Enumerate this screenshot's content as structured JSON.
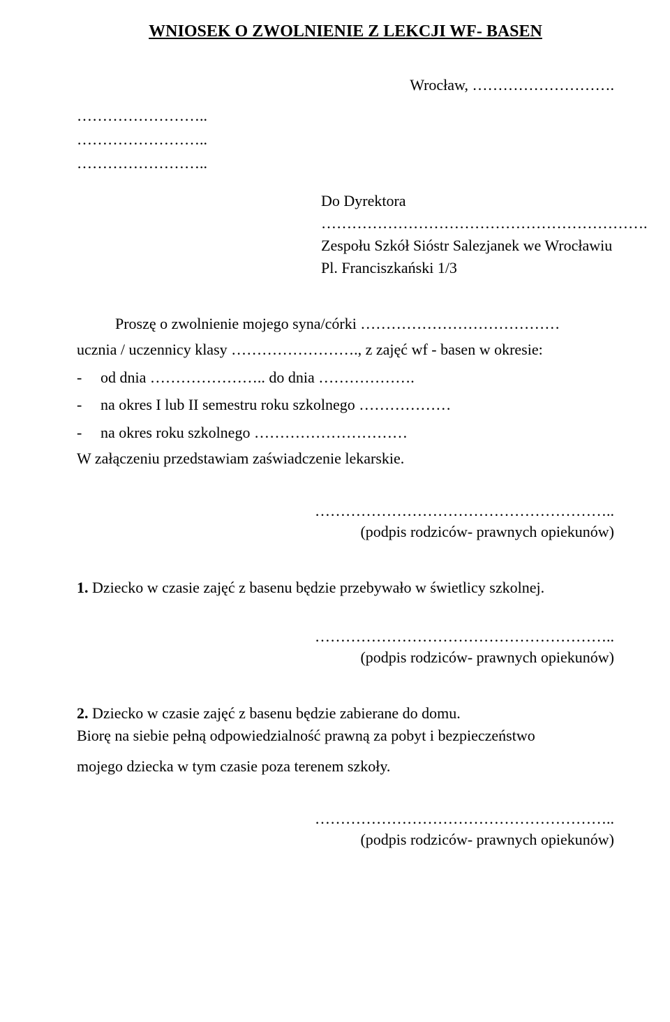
{
  "title": "WNIOSEK O ZWOLNIENIE Z LEKCJI WF- BASEN",
  "city_line": "Wrocław, ……………………….",
  "placeholder_dots": "……………………..",
  "recipient": {
    "line1": "Do Dyrektora",
    "line2": "……………………………………………………….",
    "line3": "Zespołu Szkół Sióstr Salezjanek we Wrocławiu",
    "line4": "Pl. Franciszkański 1/3"
  },
  "body": {
    "request_line": "Proszę o zwolnienie mojego syna/córki …………………………………",
    "student_line": "ucznia / uczennicy klasy ……………………., z zajęć wf - basen w okresie:",
    "item1": "od dnia ………………….. do dnia ……………….",
    "item2": "na okres I lub II semestru roku szkolnego ………………",
    "item3": "na okres roku szkolnego …………………………",
    "attachment": "W załączeniu przedstawiam zaświadczenie lekarskie."
  },
  "sig": {
    "dots": "…………………………………………………..",
    "label": "(podpis rodziców- prawnych opiekunów)"
  },
  "option1": {
    "num": "1.",
    "text": " Dziecko w czasie zajęć z basenu będzie przebywało w świetlicy szkolnej."
  },
  "option2": {
    "num": "2.",
    "text": " Dziecko w czasie zajęć z basenu będzie zabierane do domu.",
    "resp1": "Biorę na siebie pełną odpowiedzialność prawną za pobyt i bezpieczeństwo",
    "resp2": "mojego dziecka w tym czasie poza terenem szkoły."
  }
}
